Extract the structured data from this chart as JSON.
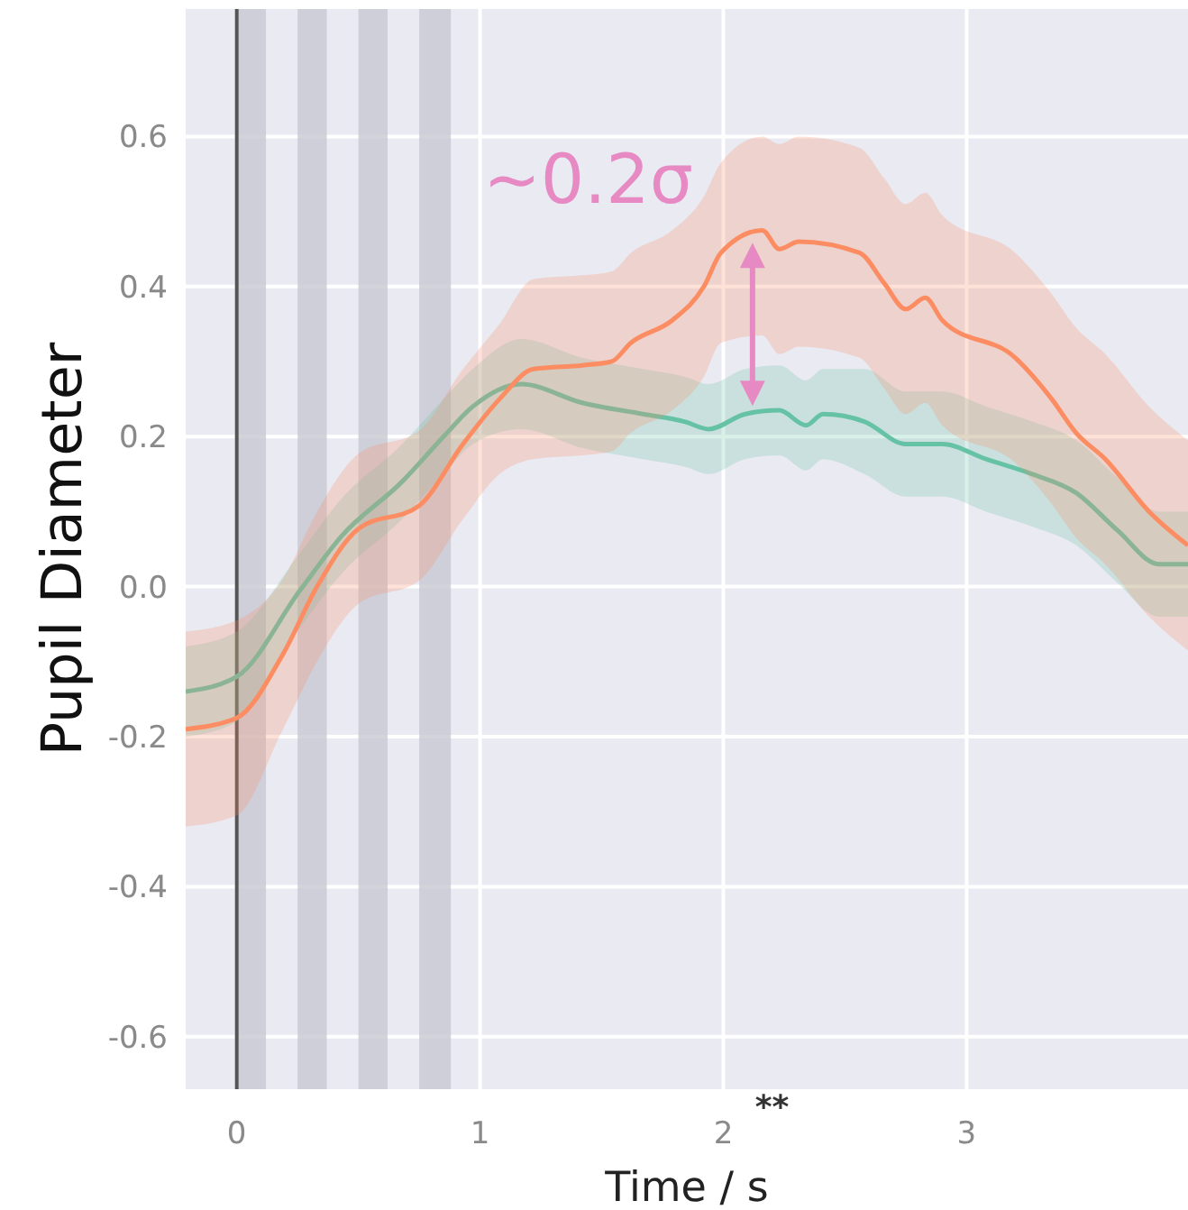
{
  "chart_data": {
    "type": "line",
    "xlabel": "Time / s",
    "ylabel": "Pupil Diameter",
    "xlim": [
      -0.21,
      3.91
    ],
    "ylim": [
      -0.67,
      0.77
    ],
    "xticks": [
      0,
      1,
      2,
      3
    ],
    "yticks": [
      -0.6,
      -0.4,
      -0.2,
      {
        "value": 0,
        "label": "0.0"
      },
      0.2,
      0.4,
      0.6
    ],
    "grid": true,
    "series": [
      {
        "color": "#66c2a5",
        "x": [
          -0.21,
          0,
          0.26,
          0.43,
          0.68,
          0.85,
          0.97,
          1.17,
          1.42,
          1.67,
          1.84,
          1.94,
          2.09,
          2.23,
          2.34,
          2.41,
          2.58,
          2.75,
          2.9,
          3.08,
          3.27,
          3.45,
          3.62,
          3.79,
          3.91
        ],
        "values": [
          -0.14,
          -0.12,
          -0.005,
          0.067,
          0.14,
          0.2,
          0.24,
          0.27,
          0.245,
          0.23,
          0.22,
          0.21,
          0.23,
          0.235,
          0.215,
          0.23,
          0.22,
          0.19,
          0.19,
          0.17,
          0.15,
          0.125,
          0.075,
          0.03,
          0.03
        ],
        "lower": [
          -0.2,
          -0.18,
          -0.055,
          0.017,
          0.09,
          0.15,
          0.19,
          0.21,
          0.185,
          0.17,
          0.16,
          0.15,
          0.17,
          0.175,
          0.155,
          0.17,
          0.15,
          0.12,
          0.12,
          0.1,
          0.08,
          0.055,
          0.005,
          -0.04,
          -0.04
        ],
        "upper": [
          -0.08,
          -0.06,
          0.045,
          0.117,
          0.19,
          0.25,
          0.29,
          0.33,
          0.305,
          0.29,
          0.28,
          0.27,
          0.29,
          0.295,
          0.275,
          0.29,
          0.29,
          0.26,
          0.26,
          0.24,
          0.22,
          0.195,
          0.145,
          0.1,
          0.1
        ]
      },
      {
        "color": "#fc8d62",
        "x": [
          -0.21,
          0,
          0.19,
          0.33,
          0.5,
          0.75,
          0.93,
          1.08,
          1.22,
          1.42,
          1.54,
          1.62,
          1.79,
          1.92,
          1.99,
          2.16,
          2.23,
          2.31,
          2.56,
          2.66,
          2.75,
          2.83,
          2.9,
          3.2,
          3.35,
          3.45,
          3.57,
          3.75,
          3.91
        ],
        "values": [
          -0.19,
          -0.175,
          -0.09,
          0,
          0.077,
          0.108,
          0.19,
          0.25,
          0.29,
          0.295,
          0.3,
          0.325,
          0.355,
          0.4,
          0.445,
          0.475,
          0.45,
          0.46,
          0.445,
          0.405,
          0.37,
          0.385,
          0.355,
          0.305,
          0.25,
          0.205,
          0.17,
          0.1,
          0.055
        ],
        "lower": [
          -0.32,
          -0.305,
          -0.19,
          -0.1,
          -0.023,
          0.008,
          0.09,
          0.15,
          0.17,
          0.175,
          0.18,
          0.205,
          0.235,
          0.28,
          0.325,
          0.335,
          0.31,
          0.32,
          0.305,
          0.265,
          0.23,
          0.245,
          0.215,
          0.165,
          0.11,
          0.065,
          0.03,
          -0.04,
          -0.085
        ],
        "upper": [
          -0.06,
          -0.045,
          0.01,
          0.1,
          0.177,
          0.208,
          0.29,
          0.35,
          0.41,
          0.415,
          0.42,
          0.445,
          0.475,
          0.52,
          0.565,
          0.6,
          0.59,
          0.6,
          0.585,
          0.545,
          0.51,
          0.525,
          0.495,
          0.445,
          0.39,
          0.345,
          0.31,
          0.24,
          0.195
        ]
      }
    ],
    "ref_lines": [
      {
        "axis": "x",
        "value": 0,
        "color": "#555555"
      }
    ],
    "bands": [
      {
        "axis": "x",
        "from": 0,
        "to": 0.12,
        "color": "#c8c8d2"
      },
      {
        "axis": "x",
        "from": 0.25,
        "to": 0.37,
        "color": "#c8c8d2"
      },
      {
        "axis": "x",
        "from": 0.5,
        "to": 0.62,
        "color": "#c8c8d2"
      },
      {
        "axis": "x",
        "from": 0.75,
        "to": 0.88,
        "color": "#c8c8d2"
      }
    ],
    "annotations": [
      {
        "text": "~0.2σ",
        "x": 2.12,
        "y": 0.475
      },
      "**"
    ]
  }
}
